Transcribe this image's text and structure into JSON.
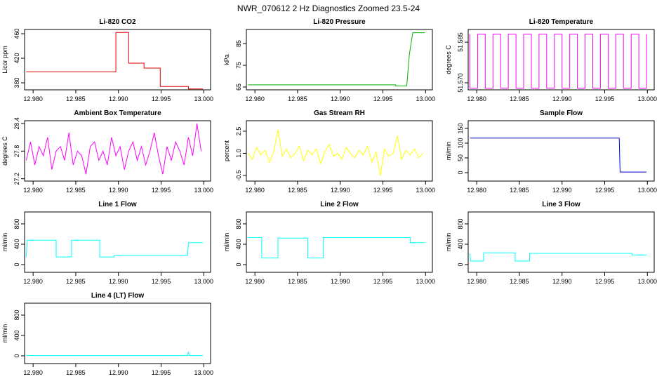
{
  "title": "NWR_070612  2 Hz Diagnostics Zoomed 23.5-24",
  "chart_data": [
    {
      "type": "line",
      "title": "Li-820 CO2",
      "ylabel": "Licor ppm",
      "color": "#e00000",
      "x": [
        12.9792,
        12.9897,
        12.9897,
        12.9912,
        12.9912,
        12.993,
        12.993,
        12.9949,
        12.9949,
        12.9982,
        12.9982,
        12.9999
      ],
      "values": [
        398,
        398,
        462,
        462,
        412,
        412,
        404,
        404,
        374,
        374,
        370,
        370
      ],
      "xlim": [
        12.979,
        13.0008
      ],
      "xticks": [
        {
          "value": 12.98,
          "label": "12.980"
        },
        {
          "value": 12.985,
          "label": "12.985"
        },
        {
          "value": 12.99,
          "label": "12.990"
        },
        {
          "value": 12.995,
          "label": "12.995"
        },
        {
          "value": 13,
          "label": "13.000"
        }
      ],
      "ylim": [
        368.6,
        466.9
      ],
      "yticks": [
        380,
        420,
        460
      ]
    },
    {
      "type": "line",
      "title": "Li-820 Pressure",
      "ylabel": "kPa",
      "color": "#00b000",
      "x": [
        12.9792,
        12.9965,
        12.9965,
        12.9978,
        12.9981,
        12.9985,
        12.9999
      ],
      "values": [
        66,
        66,
        65.5,
        65.5,
        80,
        90,
        90
      ],
      "xlim": [
        12.979,
        13.0008
      ],
      "xticks": [
        {
          "value": 12.98,
          "label": "12.980"
        },
        {
          "value": 12.985,
          "label": "12.985"
        },
        {
          "value": 12.99,
          "label": "12.990"
        },
        {
          "value": 12.995,
          "label": "12.995"
        },
        {
          "value": 13,
          "label": "13.000"
        }
      ],
      "ylim": [
        63.7,
        91.5
      ],
      "yticks": [
        65,
        75,
        85
      ]
    },
    {
      "type": "line",
      "title": "Li-820 Temperature",
      "ylabel": "degrees C",
      "color": "#ff00ff",
      "x": [
        12.9792,
        12.9792,
        12.9801,
        12.9801,
        12.981,
        12.981,
        12.9819,
        12.9819,
        12.9828,
        12.9828,
        12.9837,
        12.9837,
        12.9846,
        12.9846,
        12.9855,
        12.9855,
        12.9864,
        12.9864,
        12.9873,
        12.9873,
        12.9882,
        12.9882,
        12.9891,
        12.9891,
        12.99,
        12.99,
        12.9909,
        12.9909,
        12.9918,
        12.9918,
        12.9927,
        12.9927,
        12.9936,
        12.9936,
        12.9945,
        12.9945,
        12.9954,
        12.9954,
        12.9963,
        12.9963,
        12.9972,
        12.9972,
        12.9981,
        12.9981,
        12.999,
        12.999,
        12.9999,
        12.9999
      ],
      "values": [
        51.588,
        51.568,
        51.568,
        51.588,
        51.588,
        51.568,
        51.568,
        51.588,
        51.588,
        51.568,
        51.568,
        51.588,
        51.588,
        51.568,
        51.568,
        51.588,
        51.588,
        51.568,
        51.568,
        51.588,
        51.588,
        51.568,
        51.568,
        51.588,
        51.588,
        51.568,
        51.568,
        51.588,
        51.588,
        51.568,
        51.568,
        51.588,
        51.588,
        51.568,
        51.568,
        51.588,
        51.588,
        51.568,
        51.568,
        51.588,
        51.588,
        51.568,
        51.568,
        51.588,
        51.588,
        51.568,
        51.568,
        51.588
      ],
      "xlim": [
        12.979,
        13.0008
      ],
      "xticks": [
        {
          "value": 12.98,
          "label": "12.980"
        },
        {
          "value": 12.985,
          "label": "12.985"
        },
        {
          "value": 12.99,
          "label": "12.990"
        },
        {
          "value": 12.995,
          "label": "12.995"
        },
        {
          "value": 13,
          "label": "13.000"
        }
      ],
      "ylim": [
        51.5674,
        51.5897
      ],
      "yticks": [
        {
          "value": 51.57,
          "label": "51.570"
        },
        {
          "value": 51.585,
          "label": "51.585"
        }
      ]
    },
    {
      "type": "line",
      "title": "Ambient Box Temperature",
      "ylabel": "degrees C",
      "color": "#ff00ff",
      "x": [
        12.9792,
        12.9797,
        12.9802,
        12.9807,
        12.9812,
        12.9817,
        12.9822,
        12.9827,
        12.9832,
        12.9837,
        12.9842,
        12.9847,
        12.9852,
        12.9857,
        12.9862,
        12.9867,
        12.9872,
        12.9877,
        12.9882,
        12.9887,
        12.9892,
        12.9897,
        12.9902,
        12.9907,
        12.9912,
        12.9917,
        12.9922,
        12.9927,
        12.9932,
        12.9937,
        12.9942,
        12.9947,
        12.9952,
        12.9957,
        12.9962,
        12.9967,
        12.9972,
        12.9977,
        12.9982,
        12.9987,
        12.9992,
        12.9997
      ],
      "values": [
        27.6,
        28.0,
        27.5,
        27.9,
        27.7,
        28.1,
        27.4,
        27.8,
        27.9,
        27.6,
        28.2,
        27.5,
        27.8,
        27.7,
        27.3,
        27.9,
        28.0,
        27.6,
        27.8,
        27.5,
        28.1,
        27.7,
        27.9,
        27.4,
        27.8,
        28.0,
        27.6,
        27.9,
        27.5,
        27.8,
        28.2,
        27.7,
        27.3,
        27.9,
        27.6,
        28.0,
        27.8,
        27.5,
        28.1,
        27.7,
        28.4,
        27.8
      ],
      "xlim": [
        12.979,
        13.0008
      ],
      "xticks": [
        {
          "value": 12.98,
          "label": "12.980"
        },
        {
          "value": 12.985,
          "label": "12.985"
        },
        {
          "value": 12.99,
          "label": "12.990"
        },
        {
          "value": 12.995,
          "label": "12.995"
        },
        {
          "value": 13,
          "label": "13.000"
        }
      ],
      "ylim": [
        27.15,
        28.46
      ],
      "yticks": [
        27.2,
        27.8,
        28.4
      ]
    },
    {
      "type": "line",
      "title": "Gas Stream RH",
      "ylabel": "percent",
      "color": "#ffff00",
      "x": [
        12.9792,
        12.9797,
        12.9802,
        12.9807,
        12.9812,
        12.9817,
        12.9822,
        12.9827,
        12.9832,
        12.9837,
        12.9842,
        12.9847,
        12.9852,
        12.9857,
        12.9862,
        12.9867,
        12.9872,
        12.9877,
        12.9882,
        12.9887,
        12.9892,
        12.9897,
        12.9902,
        12.9907,
        12.9912,
        12.9917,
        12.9922,
        12.9927,
        12.9932,
        12.9937,
        12.9942,
        12.9947,
        12.9952,
        12.9957,
        12.9962,
        12.9967,
        12.9972,
        12.9977,
        12.9982,
        12.9987,
        12.9992,
        12.9997
      ],
      "values": [
        1.0,
        0.6,
        1.4,
        0.9,
        1.2,
        0.4,
        1.1,
        2.6,
        0.8,
        1.3,
        0.7,
        1.0,
        1.5,
        0.5,
        1.2,
        0.9,
        1.3,
        0.3,
        1.1,
        1.6,
        0.8,
        1.0,
        0.6,
        1.4,
        1.0,
        0.7,
        1.2,
        0.9,
        1.5,
        0.4,
        1.1,
        -0.5,
        1.3,
        0.8,
        1.0,
        2.2,
        0.6,
        1.2,
        0.9,
        1.3,
        0.7,
        1.0
      ],
      "xlim": [
        12.979,
        13.0008
      ],
      "xticks": [
        {
          "value": 12.98,
          "label": "12.980"
        },
        {
          "value": 12.985,
          "label": "12.985"
        },
        {
          "value": 12.99,
          "label": "12.990"
        },
        {
          "value": 12.995,
          "label": "12.995"
        },
        {
          "value": 13,
          "label": "13.000"
        }
      ],
      "ylim": [
        -0.88,
        3.21
      ],
      "yticks": [
        -0.5,
        {
          "value": 1,
          "label": "1.0"
        },
        2.5
      ]
    },
    {
      "type": "line",
      "title": "Sample Flow",
      "ylabel": "ml/min",
      "color": "#0000cc",
      "x": [
        12.9792,
        12.9967,
        12.9968,
        12.9999
      ],
      "values": [
        117,
        117,
        2,
        2
      ],
      "xlim": [
        12.979,
        13.0008
      ],
      "xticks": [
        {
          "value": 12.98,
          "label": "12.980"
        },
        {
          "value": 12.985,
          "label": "12.985"
        },
        {
          "value": 12.99,
          "label": "12.990"
        },
        {
          "value": 12.995,
          "label": "12.995"
        },
        {
          "value": 13,
          "label": "13.000"
        }
      ],
      "ylim": [
        -28.6,
        176
      ],
      "yticks": [
        0,
        50,
        100,
        150
      ]
    },
    {
      "type": "line",
      "title": "Line 1 Flow",
      "ylabel": "ml/min",
      "color": "#00ffff",
      "x": [
        12.9792,
        12.9793,
        12.9827,
        12.9827,
        12.9845,
        12.9845,
        12.9878,
        12.9878,
        12.9895,
        12.9895,
        12.9981,
        12.9982,
        12.9999
      ],
      "values": [
        150,
        480,
        480,
        150,
        150,
        480,
        480,
        150,
        150,
        180,
        180,
        430,
        430
      ],
      "xlim": [
        12.979,
        13.0008
      ],
      "xticks": [
        {
          "value": 12.98,
          "label": "12.980"
        },
        {
          "value": 12.985,
          "label": "12.985"
        },
        {
          "value": 12.99,
          "label": "12.990"
        },
        {
          "value": 12.995,
          "label": "12.995"
        },
        {
          "value": 13,
          "label": "13.000"
        }
      ],
      "ylim": [
        -152,
        1034
      ],
      "yticks": [
        0,
        400,
        800
      ]
    },
    {
      "type": "line",
      "title": "Line 2 Flow",
      "ylabel": "ml/min",
      "color": "#00ffff",
      "x": [
        12.9792,
        12.9808,
        12.9808,
        12.9827,
        12.9827,
        12.9862,
        12.9862,
        12.988,
        12.988,
        12.9982,
        12.9982,
        12.9999
      ],
      "values": [
        530,
        530,
        130,
        130,
        520,
        520,
        130,
        130,
        530,
        530,
        430,
        430
      ],
      "xlim": [
        12.979,
        13.0008
      ],
      "xticks": [
        {
          "value": 12.98,
          "label": "12.980"
        },
        {
          "value": 12.985,
          "label": "12.985"
        },
        {
          "value": 12.99,
          "label": "12.990"
        },
        {
          "value": 12.995,
          "label": "12.995"
        },
        {
          "value": 13,
          "label": "13.000"
        }
      ],
      "ylim": [
        -152,
        1034
      ],
      "yticks": [
        0,
        400,
        800
      ]
    },
    {
      "type": "line",
      "title": "Line 3 Flow",
      "ylabel": "ml/min",
      "color": "#00ffff",
      "x": [
        12.9792,
        12.9793,
        12.9808,
        12.9808,
        12.9845,
        12.9845,
        12.9862,
        12.9862,
        12.9982,
        12.9982,
        12.9999
      ],
      "values": [
        220,
        70,
        70,
        230,
        230,
        70,
        70,
        220,
        220,
        190,
        190
      ],
      "xlim": [
        12.979,
        13.0008
      ],
      "xticks": [
        {
          "value": 12.98,
          "label": "12.980"
        },
        {
          "value": 12.985,
          "label": "12.985"
        },
        {
          "value": 12.99,
          "label": "12.990"
        },
        {
          "value": 12.995,
          "label": "12.995"
        },
        {
          "value": 13,
          "label": "13.000"
        }
      ],
      "ylim": [
        -152,
        1034
      ],
      "yticks": [
        0,
        400,
        800
      ]
    },
    {
      "type": "line",
      "title": "Line 4 (LT) Flow",
      "ylabel": "ml/min",
      "color": "#00ffff",
      "x": [
        12.9792,
        12.9981,
        12.9982,
        12.9983,
        12.9999
      ],
      "values": [
        5,
        5,
        80,
        5,
        5
      ],
      "xlim": [
        12.979,
        13.0008
      ],
      "xticks": [
        {
          "value": 12.98,
          "label": "12.980"
        },
        {
          "value": 12.985,
          "label": "12.985"
        },
        {
          "value": 12.99,
          "label": "12.990"
        },
        {
          "value": 12.995,
          "label": "12.995"
        },
        {
          "value": 13,
          "label": "13.000"
        }
      ],
      "ylim": [
        -152,
        1034
      ],
      "yticks": [
        0,
        400,
        800
      ]
    }
  ]
}
